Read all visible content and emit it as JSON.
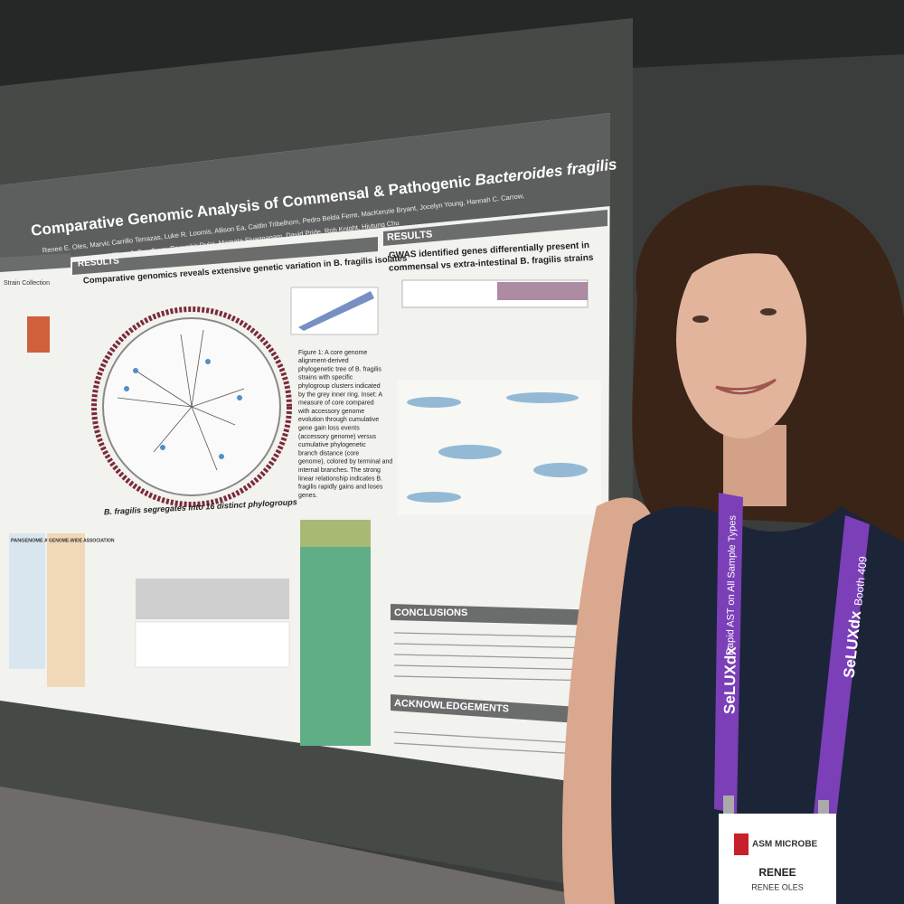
{
  "poster": {
    "title_main": "Comparative Genomic Analysis of Commensal & Pathogenic",
    "title_italic": "Bacteroides fragilis",
    "authors": [
      "Renee E. Oles, Marvic Carrillo Terrazas, Luke R. Loomis, Allison Ea, Caitlin Tribelhorn, Pedro Belda Ferre, MacKenzie Bryant, Jocelyn Young, Hannah C. Carrow,",
      "William J. Sandborn, Parambir Dulai, Mamata Sivagnanam, David Pride, Rob Knight, Hiutung Chu"
    ],
    "left_results": "RESULTS",
    "left_heading": "Comparative genomics reveals extensive genetic variation in B. fragilis isolates",
    "strain_collection": "Strain Collection",
    "figure1_caption": [
      "Figure 1: A core genome",
      "alignment-derived",
      "phylogenetic tree of B. fragilis",
      "strains with specific",
      "phylogroup clusters indicated",
      "by the grey inner ring. Inset: A",
      "measure of core compared",
      "with accessory genome",
      "evolution through cumulative",
      "gene gain loss events",
      "(accessory genome) versus",
      "cumulative phylogenetic",
      "branch distance (core",
      "genome), colored by terminal and",
      "internal branches. The strong",
      "linear relationship indicates B.",
      "fragilis rapidly gains and loses",
      "genes."
    ],
    "phylogroup_heading": "B. fragilis segregates into 16 distinct phylogroups",
    "pangenome": "PANGENOME ANALYSIS",
    "gwas_box": "GENOME-WIDE ASSOCIATION",
    "right_results": "RESULTS",
    "gwas_heading": [
      "GWAS identified genes differentially present in",
      "commensal vs extra-intestinal B. fragilis strains"
    ],
    "conclusions": "CONCLUSIONS",
    "acknowledgements": "ACKNOWLEDGEMENTS"
  },
  "lanyard": {
    "brand": "SeLUXdx",
    "tagline": "Rapid AST on All Sample Types",
    "booth": "Booth 409"
  },
  "badge": {
    "event": "ASM MICROBE",
    "first_name": "RENEE",
    "full_name": "RENEE OLES"
  }
}
